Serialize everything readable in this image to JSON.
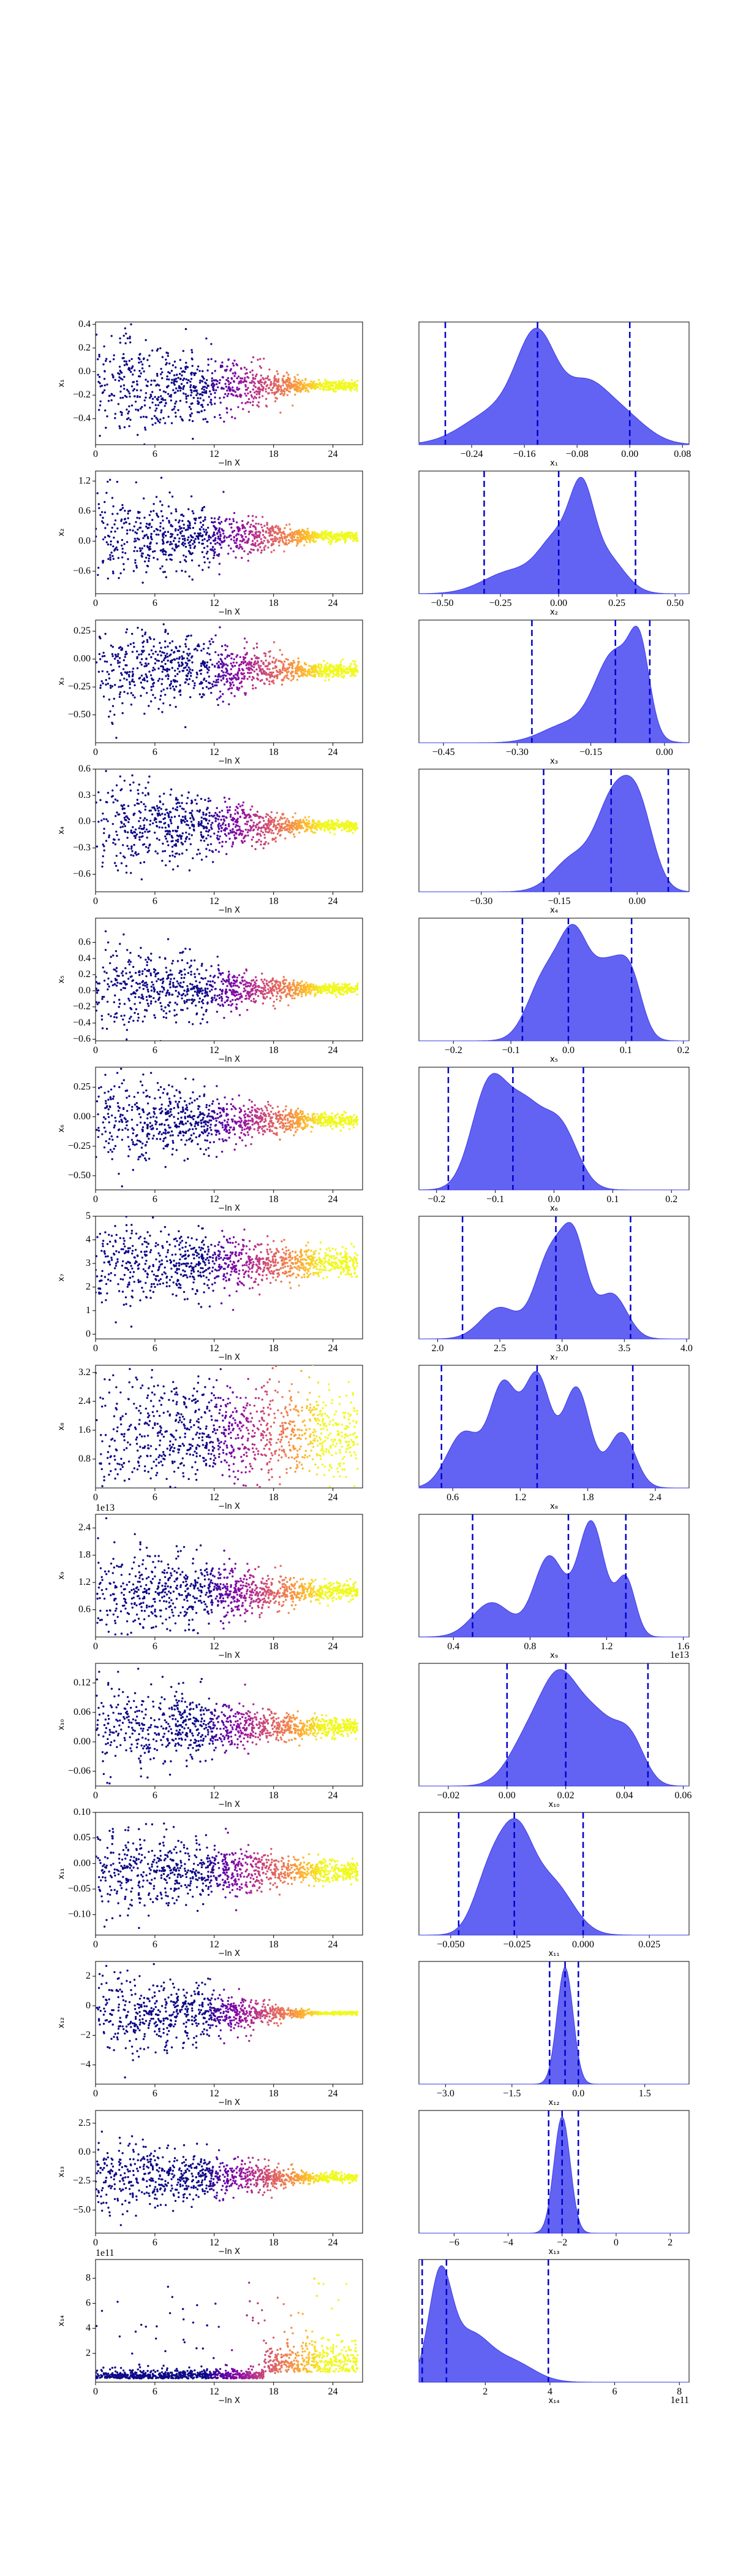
{
  "chart_data": [
    {
      "type": "scatter",
      "xlabel": "−ln X",
      "ylabel": "x₁",
      "xlim": [
        0,
        27
      ],
      "ylim": [
        -0.62,
        0.42
      ],
      "xticks": [
        "0",
        "6",
        "12",
        "18",
        "24"
      ],
      "yticks": [
        "0.4",
        "0.2",
        "0.0",
        "−0.2",
        "−0.4"
      ],
      "center": -0.12,
      "spread_start": 0.25,
      "spread_end": 0.02
    },
    {
      "type": "area",
      "xlabel": "x₁",
      "xlim": [
        -0.32,
        0.09
      ],
      "xticks": [
        "−0.24",
        "−0.16",
        "−0.08",
        "0.00",
        "0.08"
      ],
      "quantiles": [
        -0.28,
        -0.14,
        0.0
      ],
      "peaks": [
        [
          -0.2,
          0.35,
          0.05
        ],
        [
          -0.14,
          1.0,
          0.03
        ],
        [
          -0.07,
          0.45,
          0.03
        ],
        [
          -0.02,
          0.35,
          0.04
        ]
      ]
    },
    {
      "type": "scatter",
      "xlabel": "−ln X",
      "ylabel": "x₂",
      "xlim": [
        0,
        27
      ],
      "ylim": [
        -1.05,
        1.4
      ],
      "xticks": [
        "0",
        "6",
        "12",
        "18",
        "24"
      ],
      "yticks": [
        "1.2",
        "0.6",
        "0.0",
        "−0.6"
      ],
      "center": 0.1,
      "spread_start": 0.5,
      "spread_end": 0.05
    },
    {
      "type": "area",
      "xlabel": "x₂",
      "xlim": [
        -0.6,
        0.56
      ],
      "xticks": [
        "−0.50",
        "−0.25",
        "0.00",
        "0.25",
        "0.50"
      ],
      "quantiles": [
        -0.32,
        0.0,
        0.33
      ],
      "peaks": [
        [
          -0.2,
          0.3,
          0.12
        ],
        [
          0.0,
          0.7,
          0.08
        ],
        [
          0.1,
          1.0,
          0.05
        ],
        [
          0.2,
          0.5,
          0.08
        ]
      ]
    },
    {
      "type": "scatter",
      "xlabel": "−ln X",
      "ylabel": "x₃",
      "xlim": [
        0,
        27
      ],
      "ylim": [
        -0.75,
        0.35
      ],
      "xticks": [
        "0",
        "6",
        "12",
        "18",
        "24"
      ],
      "yticks": [
        "0.25",
        "0.00",
        "−0.25",
        "−0.50"
      ],
      "center": -0.1,
      "spread_start": 0.25,
      "spread_end": 0.03
    },
    {
      "type": "area",
      "xlabel": "x₃",
      "xlim": [
        -0.5,
        0.05
      ],
      "xticks": [
        "−0.45",
        "−0.30",
        "−0.15",
        "0.00"
      ],
      "quantiles": [
        -0.27,
        -0.1,
        -0.03
      ],
      "peaks": [
        [
          -0.2,
          0.2,
          0.05
        ],
        [
          -0.1,
          1.0,
          0.04
        ],
        [
          -0.05,
          0.8,
          0.02
        ]
      ]
    },
    {
      "type": "scatter",
      "xlabel": "−ln X",
      "ylabel": "x₄",
      "xlim": [
        0,
        27
      ],
      "ylim": [
        -0.8,
        0.6
      ],
      "xticks": [
        "0",
        "6",
        "12",
        "18",
        "24"
      ],
      "yticks": [
        "0.6",
        "0.3",
        "0.0",
        "−0.3",
        "−0.6"
      ],
      "center": -0.05,
      "spread_start": 0.3,
      "spread_end": 0.03
    },
    {
      "type": "area",
      "xlabel": "x₄",
      "xlim": [
        -0.42,
        0.1
      ],
      "xticks": [
        "−0.30",
        "−0.15",
        "0.00"
      ],
      "quantiles": [
        -0.18,
        -0.05,
        0.06
      ],
      "peaks": [
        [
          -0.12,
          0.4,
          0.04
        ],
        [
          -0.05,
          0.85,
          0.03
        ],
        [
          0.0,
          1.0,
          0.03
        ]
      ]
    },
    {
      "type": "scatter",
      "xlabel": "−ln X",
      "ylabel": "x₅",
      "xlim": [
        0,
        27
      ],
      "ylim": [
        -0.62,
        0.9
      ],
      "xticks": [
        "0",
        "6",
        "12",
        "18",
        "24"
      ],
      "yticks": [
        "0.6",
        "0.4",
        "0.2",
        "0.0",
        "−0.2",
        "−0.4",
        "−0.6"
      ],
      "center": 0.02,
      "spread_start": 0.3,
      "spread_end": 0.03
    },
    {
      "type": "area",
      "xlabel": "x₅",
      "xlim": [
        -0.26,
        0.21
      ],
      "xticks": [
        "−0.2",
        "−0.1",
        "0.0",
        "0.1",
        "0.2"
      ],
      "quantiles": [
        -0.08,
        0.0,
        0.11
      ],
      "peaks": [
        [
          -0.04,
          0.7,
          0.03
        ],
        [
          0.01,
          1.0,
          0.025
        ],
        [
          0.07,
          0.8,
          0.03
        ],
        [
          0.11,
          0.5,
          0.02
        ]
      ]
    },
    {
      "type": "scatter",
      "xlabel": "−ln X",
      "ylabel": "x₆",
      "xlim": [
        0,
        27
      ],
      "ylim": [
        -0.62,
        0.42
      ],
      "xticks": [
        "0",
        "6",
        "12",
        "18",
        "24"
      ],
      "yticks": [
        "0.25",
        "0.00",
        "−0.25",
        "−0.50"
      ],
      "center": -0.03,
      "spread_start": 0.2,
      "spread_end": 0.03
    },
    {
      "type": "area",
      "xlabel": "x₆",
      "xlim": [
        -0.23,
        0.23
      ],
      "xticks": [
        "−0.2",
        "−0.1",
        "0.0",
        "0.1",
        "0.2"
      ],
      "quantiles": [
        -0.18,
        -0.07,
        0.05
      ],
      "peaks": [
        [
          -0.11,
          1.0,
          0.03
        ],
        [
          -0.05,
          0.7,
          0.03
        ],
        [
          0.01,
          0.6,
          0.03
        ]
      ]
    },
    {
      "type": "scatter",
      "xlabel": "−ln X",
      "ylabel": "x₇",
      "xlim": [
        0,
        27
      ],
      "ylim": [
        -0.2,
        5.0
      ],
      "xticks": [
        "0",
        "6",
        "12",
        "18",
        "24"
      ],
      "yticks": [
        "5",
        "4",
        "3",
        "2",
        "1",
        "0"
      ],
      "center": 3.0,
      "spread_start": 1.0,
      "spread_end": 0.3
    },
    {
      "type": "area",
      "xlabel": "x₇",
      "xlim": [
        1.85,
        4.02
      ],
      "xticks": [
        "2.0",
        "2.5",
        "3.0",
        "3.5",
        "4.0"
      ],
      "quantiles": [
        2.2,
        2.95,
        3.55
      ],
      "peaks": [
        [
          2.5,
          0.35,
          0.15
        ],
        [
          2.9,
          0.9,
          0.12
        ],
        [
          3.1,
          1.0,
          0.1
        ],
        [
          3.4,
          0.5,
          0.12
        ]
      ]
    },
    {
      "type": "scatter",
      "xlabel": "−ln X",
      "ylabel": "x₈",
      "xlim": [
        0,
        27
      ],
      "ylim": [
        0.0,
        3.4
      ],
      "xticks": [
        "0",
        "6",
        "12",
        "18",
        "24"
      ],
      "yticks": [
        "3.2",
        "2.4",
        "1.6",
        "0.8"
      ],
      "center": 1.5,
      "spread_start": 1.0,
      "spread_end": 0.6
    },
    {
      "type": "area",
      "xlabel": "x₈",
      "xlim": [
        0.3,
        2.7
      ],
      "xticks": [
        "0.6",
        "1.2",
        "1.8",
        "2.4"
      ],
      "quantiles": [
        0.5,
        1.35,
        2.2
      ],
      "peaks": [
        [
          0.7,
          0.5,
          0.15
        ],
        [
          1.05,
          0.9,
          0.12
        ],
        [
          1.35,
          1.0,
          0.12
        ],
        [
          1.7,
          0.9,
          0.12
        ],
        [
          2.1,
          0.5,
          0.12
        ]
      ]
    },
    {
      "type": "scatter",
      "xlabel": "−ln X",
      "ylabel": "x₉",
      "xlim": [
        0,
        27
      ],
      "ylim": [
        0.0,
        2.7
      ],
      "xticks": [
        "0",
        "6",
        "12",
        "18",
        "24"
      ],
      "yticks": [
        "2.4",
        "1.8",
        "1.2",
        "0.6"
      ],
      "offset_label": "1e13",
      "center": 1.0,
      "spread_start": 0.6,
      "spread_end": 0.1
    },
    {
      "type": "area",
      "xlabel": "x₉",
      "xlim": [
        0.22,
        1.63
      ],
      "xticks": [
        "0.4",
        "0.8",
        "1.2",
        "1.6"
      ],
      "offset_label": "1e13",
      "quantiles": [
        0.5,
        1.0,
        1.3
      ],
      "peaks": [
        [
          0.6,
          0.3,
          0.1
        ],
        [
          0.9,
          0.7,
          0.08
        ],
        [
          1.12,
          1.0,
          0.07
        ],
        [
          1.3,
          0.5,
          0.05
        ]
      ]
    },
    {
      "type": "scatter",
      "xlabel": "−ln X",
      "ylabel": "x₁₀",
      "xlim": [
        0,
        27
      ],
      "ylim": [
        -0.09,
        0.16
      ],
      "xticks": [
        "0",
        "6",
        "12",
        "18",
        "24"
      ],
      "yticks": [
        "0.12",
        "0.06",
        "0.00",
        "−0.06"
      ],
      "center": 0.03,
      "spread_start": 0.05,
      "spread_end": 0.01
    },
    {
      "type": "area",
      "xlabel": "x₁₀",
      "xlim": [
        -0.03,
        0.062
      ],
      "xticks": [
        "−0.02",
        "0.00",
        "0.02",
        "0.04",
        "0.06"
      ],
      "quantiles": [
        0.0,
        0.02,
        0.048
      ],
      "peaks": [
        [
          0.008,
          0.6,
          0.007
        ],
        [
          0.018,
          1.0,
          0.006
        ],
        [
          0.03,
          0.8,
          0.007
        ],
        [
          0.042,
          0.5,
          0.005
        ]
      ]
    },
    {
      "type": "scatter",
      "xlabel": "−ln X",
      "ylabel": "x₁₁",
      "xlim": [
        0,
        27
      ],
      "ylim": [
        -0.14,
        0.1
      ],
      "xticks": [
        "0",
        "6",
        "12",
        "18",
        "24"
      ],
      "yticks": [
        "0.10",
        "0.05",
        "0.00",
        "−0.05",
        "−0.10"
      ],
      "center": -0.015,
      "spread_start": 0.05,
      "spread_end": 0.01
    },
    {
      "type": "area",
      "xlabel": "x₁₁",
      "xlim": [
        -0.062,
        0.04
      ],
      "xticks": [
        "−0.050",
        "−0.025",
        "0.000",
        "0.025"
      ],
      "quantiles": [
        -0.047,
        -0.026,
        0.0
      ],
      "peaks": [
        [
          -0.035,
          0.7,
          0.006
        ],
        [
          -0.025,
          1.0,
          0.006
        ],
        [
          -0.012,
          0.6,
          0.008
        ]
      ]
    },
    {
      "type": "scatter",
      "xlabel": "−ln X",
      "ylabel": "x₁₂",
      "xlim": [
        0,
        27
      ],
      "ylim": [
        -5.3,
        3.0
      ],
      "xticks": [
        "0",
        "6",
        "12",
        "18",
        "24"
      ],
      "yticks": [
        "2",
        "0",
        "−2",
        "−4"
      ],
      "center": -0.5,
      "spread_start": 1.6,
      "spread_end": 0.05
    },
    {
      "type": "area",
      "xlabel": "x₁₂",
      "xlim": [
        -3.6,
        2.5
      ],
      "xticks": [
        "−3.0",
        "−1.5",
        "0.0",
        "1.5"
      ],
      "quantiles": [
        -0.65,
        -0.3,
        0.0
      ],
      "peaks": [
        [
          -0.3,
          1.0,
          0.18
        ]
      ]
    },
    {
      "type": "scatter",
      "xlabel": "−ln X",
      "ylabel": "x₁₃",
      "xlim": [
        0,
        27
      ],
      "ylim": [
        -7.0,
        3.6
      ],
      "xticks": [
        "0",
        "6",
        "12",
        "18",
        "24"
      ],
      "yticks": [
        "2.5",
        "0.0",
        "−2.5",
        "−5.0"
      ],
      "center": -2.2,
      "spread_start": 1.8,
      "spread_end": 0.2
    },
    {
      "type": "area",
      "xlabel": "x₁₃",
      "xlim": [
        -7.3,
        2.7
      ],
      "xticks": [
        "−6",
        "−4",
        "−2",
        "0",
        "2"
      ],
      "quantiles": [
        -2.5,
        -2.0,
        -1.4
      ],
      "peaks": [
        [
          -2.0,
          1.0,
          0.3
        ]
      ]
    },
    {
      "type": "scatter",
      "xlabel": "−ln X",
      "ylabel": "x₁₄",
      "xlim": [
        0,
        27
      ],
      "ylim": [
        -0.3,
        9.5
      ],
      "xticks": [
        "0",
        "6",
        "12",
        "18",
        "24"
      ],
      "yticks": [
        "8",
        "6",
        "4",
        "2"
      ],
      "offset_label": "1e11",
      "center": 0.8,
      "spread_start": 1.0,
      "spread_end": 1.0,
      "skew": true
    },
    {
      "type": "area",
      "xlabel": "x₁₄",
      "xlim": [
        -0.05,
        8.3
      ],
      "xticks": [
        "2",
        "4",
        "6",
        "8"
      ],
      "offset_label": "1e11",
      "quantiles": [
        0.05,
        0.8,
        3.95
      ],
      "peaks": [
        [
          0.6,
          1.0,
          0.35
        ],
        [
          1.5,
          0.45,
          0.6
        ],
        [
          2.8,
          0.2,
          0.7
        ]
      ]
    }
  ]
}
